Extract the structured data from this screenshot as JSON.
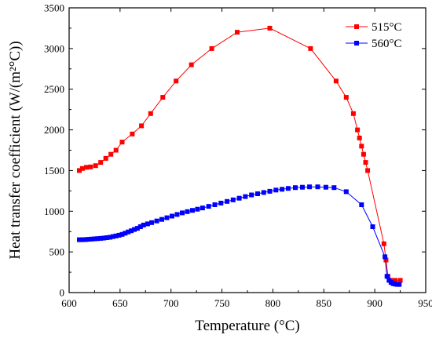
{
  "chart_data": {
    "type": "line",
    "xlabel": "Temperature (°C)",
    "ylabel": "Heat transfer coefficient (W/(m²°C))",
    "xlim": [
      600,
      950
    ],
    "ylim": [
      0,
      3500
    ],
    "xticks": [
      600,
      650,
      700,
      750,
      800,
      850,
      900,
      950
    ],
    "yticks": [
      0,
      500,
      1000,
      1500,
      2000,
      2500,
      3000,
      3500
    ],
    "xtick_labels": [
      "600",
      "650",
      "700",
      "750",
      "800",
      "850",
      "900",
      "950"
    ],
    "ytick_labels": [
      "0",
      "500",
      "1000",
      "1500",
      "2000",
      "2500",
      "3000",
      "3500"
    ],
    "legend_position": "top-right",
    "grid": false,
    "series": [
      {
        "name": "515°C",
        "color": "#ff0000",
        "marker": "square",
        "x": [
          610,
          613,
          617,
          621,
          626,
          631,
          636,
          641,
          646,
          652,
          662,
          671,
          680,
          692,
          705,
          720,
          740,
          765,
          797,
          837,
          862,
          872,
          879,
          883,
          885,
          887,
          889,
          891,
          893,
          909,
          911,
          913,
          916,
          920,
          925
        ],
        "y": [
          1500,
          1525,
          1540,
          1545,
          1560,
          1600,
          1650,
          1700,
          1750,
          1850,
          1950,
          2050,
          2200,
          2400,
          2600,
          2800,
          3000,
          3200,
          3250,
          3000,
          2600,
          2400,
          2200,
          2000,
          1900,
          1800,
          1700,
          1600,
          1500,
          600,
          400,
          200,
          150,
          150,
          150
        ]
      },
      {
        "name": "560°C",
        "color": "#0000ff",
        "marker": "square",
        "x": [
          610,
          613,
          616,
          619,
          622,
          625,
          628,
          631,
          634,
          637,
          640,
          643,
          646,
          649,
          652,
          655,
          658,
          661,
          664,
          667,
          670,
          673,
          677,
          681,
          686,
          691,
          696,
          701,
          706,
          711,
          716,
          721,
          726,
          731,
          737,
          743,
          749,
          755,
          761,
          767,
          773,
          779,
          785,
          791,
          797,
          803,
          809,
          815,
          822,
          829,
          836,
          844,
          852,
          860,
          872,
          887,
          898,
          910,
          912,
          914,
          916,
          918,
          920,
          922,
          924
        ],
        "y": [
          650,
          650,
          652,
          655,
          658,
          660,
          663,
          666,
          670,
          675,
          680,
          688,
          696,
          705,
          715,
          730,
          745,
          760,
          775,
          790,
          810,
          830,
          845,
          860,
          880,
          900,
          920,
          940,
          960,
          980,
          995,
          1010,
          1025,
          1040,
          1060,
          1080,
          1100,
          1120,
          1140,
          1160,
          1180,
          1200,
          1215,
          1230,
          1245,
          1260,
          1270,
          1280,
          1290,
          1295,
          1300,
          1300,
          1295,
          1290,
          1240,
          1080,
          810,
          440,
          200,
          150,
          125,
          110,
          105,
          100,
          100
        ]
      }
    ]
  }
}
